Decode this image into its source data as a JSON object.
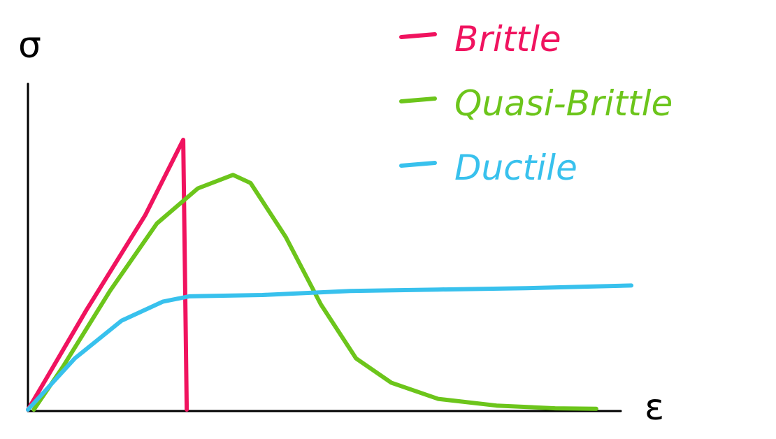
{
  "chart_data": {
    "type": "line",
    "title": "",
    "ylabel": "σ",
    "xlabel": "ε",
    "xlim": [
      0,
      100
    ],
    "ylim": [
      0,
      100
    ],
    "grid": false,
    "legend_position": "top-right",
    "series": [
      {
        "name": "Brittle",
        "color": "#f0135f",
        "x": [
          0,
          3,
          10,
          20,
          26.5,
          27.1
        ],
        "y": [
          0,
          11,
          37,
          72,
          100,
          0
        ]
      },
      {
        "name": "Quasi-Brittle",
        "color": "#6cc51b",
        "x": [
          1,
          6,
          14,
          22,
          29,
          35,
          38,
          44,
          50,
          56,
          62,
          70,
          80,
          90,
          97
        ],
        "y": [
          0,
          16,
          44,
          69,
          82,
          87,
          84,
          64,
          39,
          19,
          10,
          4,
          1.5,
          0.5,
          0.3
        ]
      },
      {
        "name": "Ductile",
        "color": "#38c1ed",
        "x": [
          0,
          8,
          16,
          23,
          27.5,
          40,
          55,
          70,
          85,
          103
        ],
        "y": [
          0,
          19,
          33,
          40,
          42,
          42.5,
          44,
          44.5,
          45,
          46
        ]
      }
    ]
  }
}
